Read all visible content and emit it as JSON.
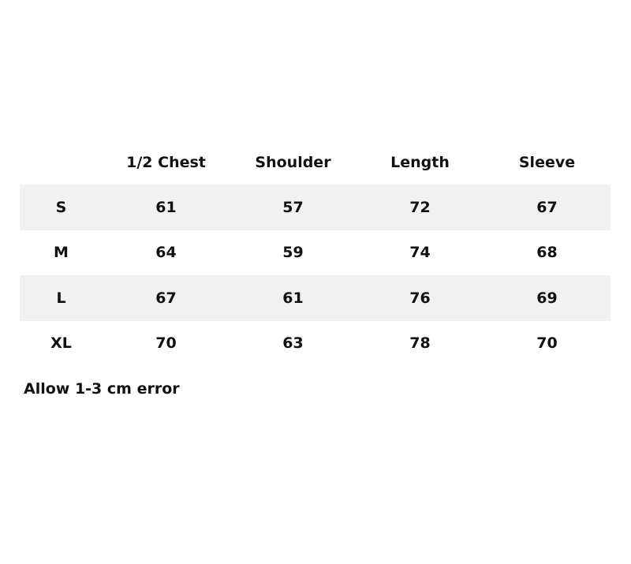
{
  "table": {
    "headers": [
      "",
      "1/2 Chest",
      "Shoulder",
      "Length",
      "Sleeve"
    ],
    "rows": [
      [
        "S",
        "61",
        "57",
        "72",
        "67"
      ],
      [
        "M",
        "64",
        "59",
        "74",
        "68"
      ],
      [
        "L",
        "67",
        "61",
        "76",
        "69"
      ],
      [
        "XL",
        "70",
        "63",
        "78",
        "70"
      ]
    ]
  },
  "note": "Allow 1-3 cm error",
  "colors": {
    "shaded_row": "#f1f1f1",
    "text": "#111111"
  }
}
